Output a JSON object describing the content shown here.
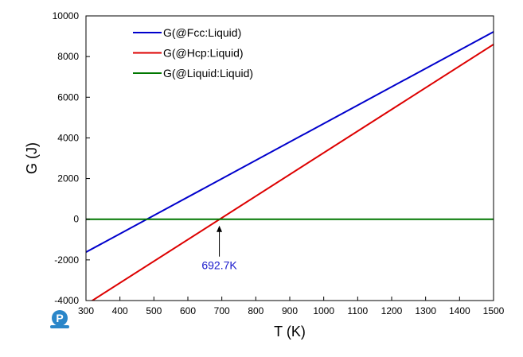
{
  "chart_data": {
    "type": "line",
    "xlabel": "T (K)",
    "ylabel": "G (J)",
    "xlim": [
      300,
      1500
    ],
    "ylim": [
      -4000,
      10000
    ],
    "xticks": [
      300,
      400,
      500,
      600,
      700,
      800,
      900,
      1000,
      1100,
      1200,
      1300,
      1400,
      1500
    ],
    "yticks": [
      -4000,
      -2000,
      0,
      2000,
      4000,
      6000,
      8000,
      10000
    ],
    "grid": false,
    "legend_position": "top-left",
    "series": [
      {
        "name": "G(@Fcc:Liquid)",
        "color": "#0000cc",
        "x": [
          300,
          1500
        ],
        "y": [
          -1620,
          9220
        ]
      },
      {
        "name": "G(@Hcp:Liquid)",
        "color": "#dd0000",
        "x": [
          300,
          1500
        ],
        "y": [
          -4200,
          8600
        ]
      },
      {
        "name": "G(@Liquid:Liquid)",
        "color": "#007700",
        "x": [
          300,
          1500
        ],
        "y": [
          0,
          0
        ]
      }
    ],
    "annotations": [
      {
        "text": "692.7K",
        "x": 692.7,
        "y": 0,
        "color": "#1a1acc"
      }
    ]
  },
  "logo": {
    "letter": "P",
    "color": "#2a86c9",
    "name": "logo-icon"
  }
}
